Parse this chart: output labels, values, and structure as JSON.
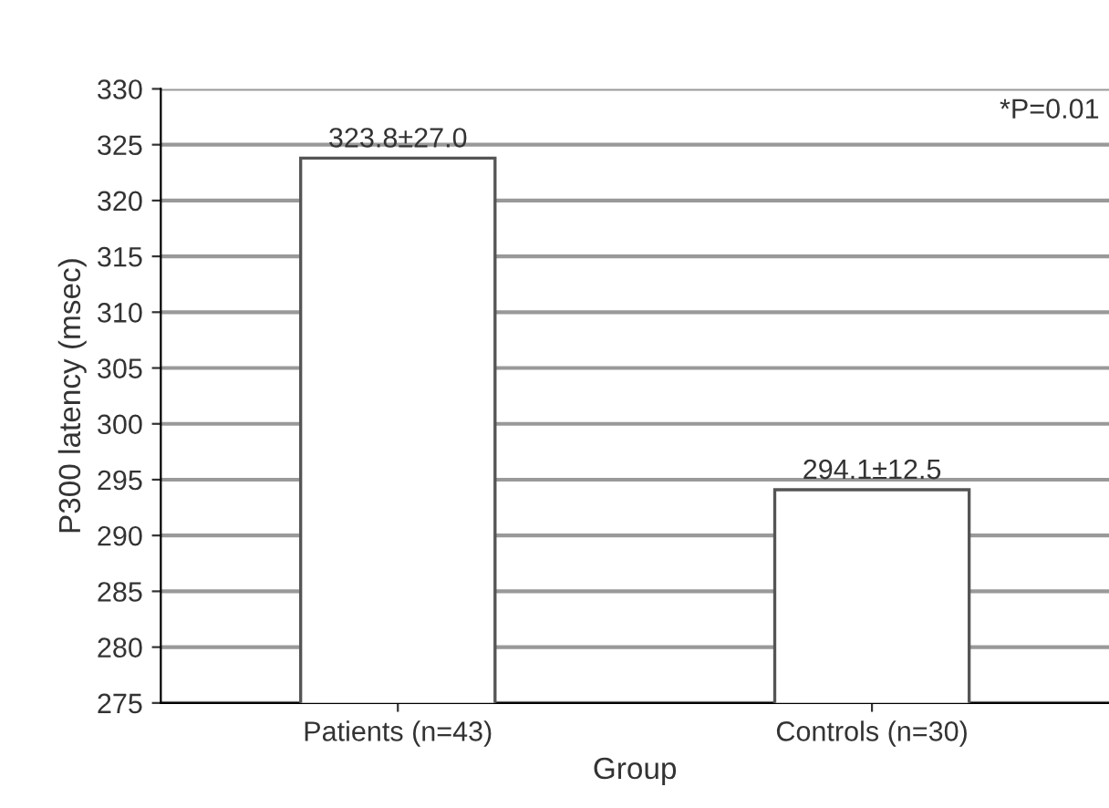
{
  "chart_data": {
    "type": "bar",
    "xlabel": "Group",
    "ylabel": "P300 latency (msec)",
    "categories": [
      "Patients (n=43)",
      "Controls (n=30)"
    ],
    "values": [
      323.8,
      294.1
    ],
    "value_labels": [
      "323.8±27.0",
      "294.1±12.5"
    ],
    "color": "#ffffff",
    "ylim": [
      275,
      330
    ],
    "yticks": [
      275,
      280,
      285,
      290,
      295,
      300,
      305,
      310,
      315,
      320,
      325,
      330
    ],
    "grid": "y",
    "legend": false,
    "annotations": [
      "*P=0.01"
    ]
  }
}
